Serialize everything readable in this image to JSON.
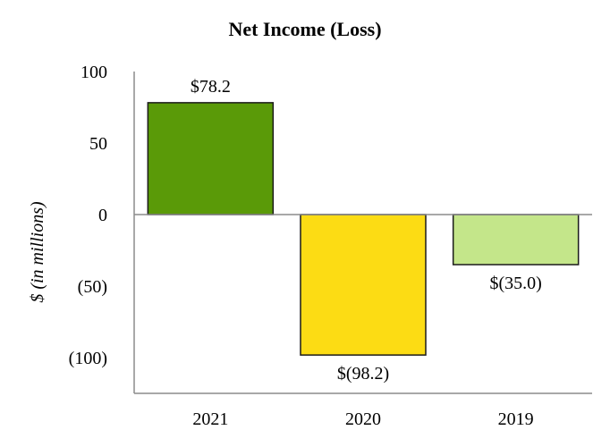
{
  "chart_data": {
    "type": "bar",
    "title": "Net Income (Loss)",
    "xlabel": "",
    "ylabel": "$ (in millions)",
    "categories": [
      "2021",
      "2020",
      "2019"
    ],
    "values": [
      78.2,
      -98.2,
      -35.0
    ],
    "data_labels": [
      "$78.2",
      "$(98.2)",
      "$(35.0)"
    ],
    "ylim": [
      -125,
      100
    ],
    "yticks": [
      100,
      50,
      0,
      -50,
      -100
    ],
    "ytick_labels": [
      "100",
      "50",
      "0",
      "(50)",
      "(100)"
    ],
    "colors": [
      "#5a9a08",
      "#fcdc14",
      "#c4e68a"
    ],
    "grid": false,
    "legend": "none"
  }
}
